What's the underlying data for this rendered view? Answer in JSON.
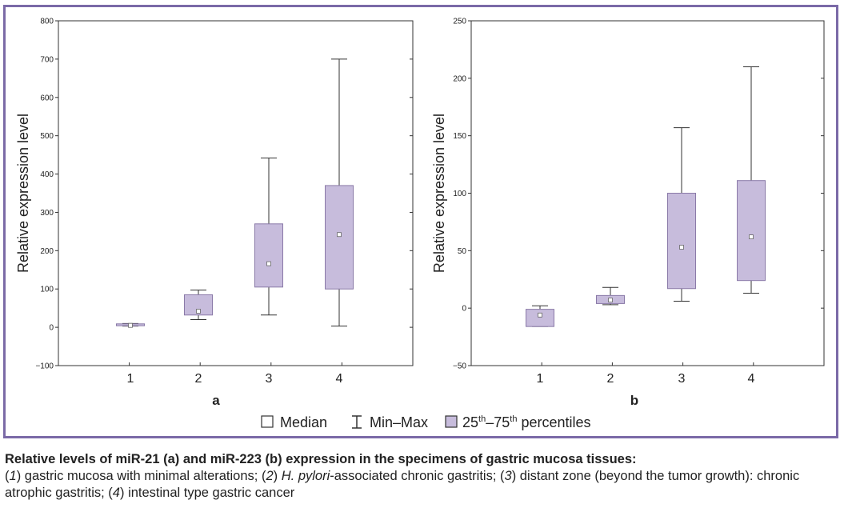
{
  "chart_data": [
    {
      "type": "box",
      "panel_label": "a",
      "ylabel": "Relative expression level",
      "ylim": [
        -100,
        800
      ],
      "yticks": [
        -100,
        0,
        100,
        200,
        300,
        400,
        500,
        600,
        700,
        800
      ],
      "categories": [
        "1",
        "2",
        "3",
        "4"
      ],
      "boxes": [
        {
          "category": "1",
          "min": 3,
          "q1": 4,
          "median": 5,
          "q3": 9,
          "max": 10
        },
        {
          "category": "2",
          "min": 20,
          "q1": 32,
          "median": 42,
          "q3": 85,
          "max": 97
        },
        {
          "category": "3",
          "min": 32,
          "q1": 105,
          "median": 166,
          "q3": 270,
          "max": 442
        },
        {
          "category": "4",
          "min": 3,
          "q1": 100,
          "median": 242,
          "q3": 370,
          "max": 700
        }
      ]
    },
    {
      "type": "box",
      "panel_label": "b",
      "ylabel": "Relative expression level",
      "ylim": [
        -50,
        250
      ],
      "yticks": [
        -50,
        0,
        50,
        100,
        150,
        200,
        250
      ],
      "categories": [
        "1",
        "2",
        "3",
        "4"
      ],
      "boxes": [
        {
          "category": "1",
          "min": -16,
          "q1": -16,
          "median": -6,
          "q3": -1,
          "max": 2
        },
        {
          "category": "2",
          "min": 3,
          "q1": 4,
          "median": 7,
          "q3": 11,
          "max": 18
        },
        {
          "category": "3",
          "min": 6,
          "q1": 17,
          "median": 53,
          "q3": 100,
          "max": 157
        },
        {
          "category": "4",
          "min": 13,
          "q1": 24,
          "median": 62,
          "q3": 111,
          "max": 210
        }
      ]
    }
  ],
  "legend": {
    "median": "Median",
    "minmax": "Min–Max",
    "pct_a": "25",
    "pct_sup_a": "th",
    "pct_b": "–75",
    "pct_sup_b": "th",
    "pct_c": " percentiles"
  },
  "caption": {
    "title": "Relative levels of miR-21 (a) and miR-223 (b) expression in the specimens of gastric mucosa tissues:",
    "s1n": "1",
    "s1": " gastric mucosa with minimal alterations; (",
    "s2n": "2",
    "s2a": ") ",
    "s2i": "H. pylori",
    "s2b": "-associated chronic gastritis; (",
    "s3n": "3",
    "s3": ") distant zone (beyond the tumor growth): chronic atrophic gastritis; (",
    "s4n": "4",
    "s4": ") intestinal type gastric cancer"
  },
  "colors": {
    "box_fill": "#c7bcdc",
    "box_stroke": "#8a7aa8",
    "frame": "#7b6aa7",
    "line": "#333333"
  }
}
